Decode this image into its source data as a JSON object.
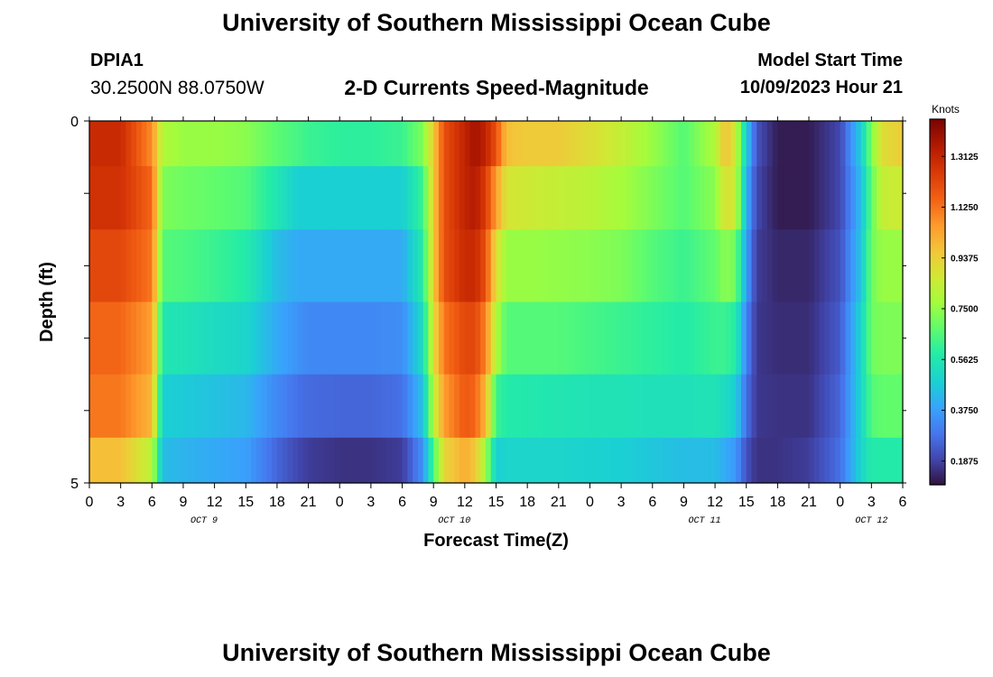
{
  "page": {
    "title": "University of Southern Mississippi Ocean Cube",
    "footer_title": "University of Southern Mississippi Ocean Cube",
    "station_id": "DPIA1",
    "coordinates": "30.2500N  88.0750W",
    "subtitle": "2-D Currents Speed-Magnitude",
    "model_start_label": "Model Start Time",
    "model_start_time": "10/09/2023 Hour 21"
  },
  "chart_data": {
    "type": "heatmap",
    "title": "2-D Currents Speed-Magnitude",
    "xlabel": "Forecast Time(Z)",
    "ylabel": "Depth (ft)",
    "colorbar_label": "Knots",
    "colorbar_ticks": [
      "1.3125",
      "1.1250",
      "0.9375",
      "0.7500",
      "0.5625",
      "0.3750",
      "0.1875"
    ],
    "colorbar_range": [
      0.1,
      1.45
    ],
    "y_ticks": [
      "0",
      "5"
    ],
    "y_range": [
      0,
      5
    ],
    "x_tick_labels": [
      "0",
      "3",
      "6",
      "9",
      "12",
      "15",
      "18",
      "21",
      "0",
      "3",
      "6",
      "9",
      "12",
      "15",
      "18",
      "21",
      "0",
      "3",
      "6",
      "9",
      "12",
      "15",
      "18",
      "21",
      "0",
      "3",
      "6"
    ],
    "x_range_hours": [
      0,
      78
    ],
    "day_labels": [
      {
        "text": "OCT 9",
        "hour": 11
      },
      {
        "text": "OCT 10",
        "hour": 35
      },
      {
        "text": "OCT 11",
        "hour": 59
      },
      {
        "text": "OCT 12",
        "hour": 75
      }
    ],
    "hours": [
      0,
      3,
      6,
      7,
      9,
      12,
      15,
      18,
      20,
      21,
      24,
      27,
      30,
      32,
      33,
      34,
      36,
      37,
      38,
      39,
      40,
      42,
      45,
      48,
      51,
      54,
      57,
      60,
      61,
      62,
      63,
      64,
      66,
      69,
      72,
      74,
      75,
      76,
      78
    ],
    "depth_layers": [
      {
        "depth": 0.25,
        "values": [
          1.3,
          1.3,
          1.08,
          0.8,
          0.76,
          0.76,
          0.74,
          0.67,
          0.64,
          0.62,
          0.6,
          0.6,
          0.62,
          0.72,
          0.95,
          1.2,
          1.32,
          1.38,
          1.32,
          1.2,
          0.98,
          0.95,
          0.95,
          0.9,
          0.84,
          0.76,
          0.66,
          0.8,
          0.98,
          0.85,
          0.48,
          0.22,
          0.12,
          0.12,
          0.2,
          0.48,
          0.72,
          0.9,
          0.95
        ]
      },
      {
        "depth": 1.0,
        "values": [
          1.28,
          1.28,
          1.15,
          0.72,
          0.7,
          0.68,
          0.66,
          0.56,
          0.48,
          0.48,
          0.48,
          0.48,
          0.48,
          0.62,
          0.95,
          1.2,
          1.32,
          1.35,
          1.25,
          1.05,
          0.88,
          0.86,
          0.84,
          0.82,
          0.78,
          0.72,
          0.66,
          0.74,
          0.9,
          0.84,
          0.42,
          0.2,
          0.12,
          0.12,
          0.2,
          0.44,
          0.68,
          0.84,
          0.86
        ]
      },
      {
        "depth": 2.0,
        "values": [
          1.22,
          1.22,
          1.12,
          0.66,
          0.65,
          0.62,
          0.58,
          0.44,
          0.4,
          0.4,
          0.4,
          0.4,
          0.4,
          0.58,
          0.95,
          1.2,
          1.3,
          1.3,
          1.2,
          0.9,
          0.76,
          0.76,
          0.75,
          0.74,
          0.72,
          0.66,
          0.62,
          0.68,
          0.74,
          0.7,
          0.38,
          0.18,
          0.14,
          0.14,
          0.22,
          0.46,
          0.7,
          0.76,
          0.76
        ]
      },
      {
        "depth": 3.0,
        "values": [
          1.15,
          1.15,
          1.05,
          0.56,
          0.55,
          0.52,
          0.5,
          0.4,
          0.35,
          0.33,
          0.33,
          0.33,
          0.34,
          0.52,
          0.9,
          1.12,
          1.22,
          1.22,
          1.1,
          0.8,
          0.66,
          0.66,
          0.66,
          0.64,
          0.62,
          0.6,
          0.58,
          0.62,
          0.62,
          0.58,
          0.32,
          0.17,
          0.15,
          0.15,
          0.24,
          0.5,
          0.7,
          0.72,
          0.72
        ]
      },
      {
        "depth": 4.0,
        "values": [
          1.12,
          1.12,
          1.0,
          0.48,
          0.47,
          0.45,
          0.43,
          0.33,
          0.28,
          0.27,
          0.26,
          0.26,
          0.28,
          0.45,
          0.82,
          1.05,
          1.18,
          1.15,
          1.0,
          0.62,
          0.58,
          0.57,
          0.56,
          0.55,
          0.55,
          0.54,
          0.54,
          0.55,
          0.52,
          0.48,
          0.28,
          0.17,
          0.16,
          0.16,
          0.26,
          0.5,
          0.66,
          0.68,
          0.68
        ]
      },
      {
        "depth": 4.75,
        "values": [
          0.98,
          0.98,
          0.82,
          0.44,
          0.42,
          0.4,
          0.38,
          0.26,
          0.2,
          0.18,
          0.16,
          0.16,
          0.18,
          0.35,
          0.65,
          0.92,
          1.02,
          0.96,
          0.78,
          0.48,
          0.5,
          0.5,
          0.5,
          0.49,
          0.48,
          0.46,
          0.44,
          0.44,
          0.4,
          0.36,
          0.22,
          0.16,
          0.16,
          0.18,
          0.28,
          0.5,
          0.58,
          0.58,
          0.58
        ]
      }
    ]
  }
}
